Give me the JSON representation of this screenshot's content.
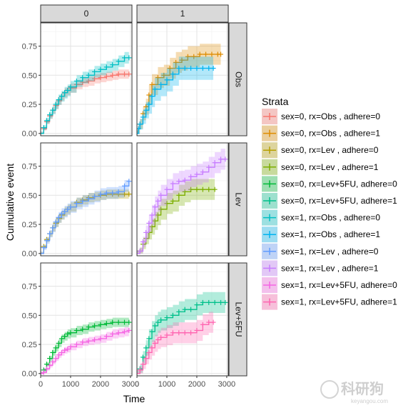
{
  "chart_data": {
    "type": "line",
    "subtype": "step cumulative-event curves with confidence bands (facetted)",
    "ylabel": "Cumulative event",
    "xlabel": "Time",
    "xlim": [
      0,
      3050
    ],
    "ylim": [
      -0.02,
      0.95
    ],
    "x_ticks": [
      0,
      1000,
      2000,
      3000
    ],
    "y_ticks": [
      0.0,
      0.25,
      0.5,
      0.75
    ],
    "x_tick_labels": [
      "0",
      "1000",
      "2000",
      "3000"
    ],
    "y_tick_labels": [
      "0.00",
      "0.25",
      "0.50",
      "0.75"
    ],
    "grid": true,
    "legend_title": "Strata",
    "legend_position": "right",
    "column_strips": [
      "0",
      "1"
    ],
    "row_strips": [
      "Obs",
      "Lev",
      "Lev+5FU"
    ],
    "legend": [
      {
        "label": "sex=0, rx=Obs    , adhere=0",
        "color": "#F8766D"
      },
      {
        "label": "sex=0, rx=Obs    , adhere=1",
        "color": "#DE8C00"
      },
      {
        "label": "sex=0, rx=Lev    , adhere=0",
        "color": "#B79F00"
      },
      {
        "label": "sex=0, rx=Lev    , adhere=1",
        "color": "#7CAE00"
      },
      {
        "label": "sex=0, rx=Lev+5FU, adhere=0",
        "color": "#00BA38"
      },
      {
        "label": "sex=0, rx=Lev+5FU, adhere=1",
        "color": "#00C08B"
      },
      {
        "label": "sex=1, rx=Obs    , adhere=0",
        "color": "#00BFC4"
      },
      {
        "label": "sex=1, rx=Obs    , adhere=1",
        "color": "#00B4F0"
      },
      {
        "label": "sex=1, rx=Lev    , adhere=0",
        "color": "#619CFF"
      },
      {
        "label": "sex=1, rx=Lev    , adhere=1",
        "color": "#C77CFF"
      },
      {
        "label": "sex=1, rx=Lev+5FU, adhere=0",
        "color": "#F564E3"
      },
      {
        "label": "sex=1, rx=Lev+5FU, adhere=1",
        "color": "#FF64B0"
      }
    ],
    "panels": [
      {
        "row": 0,
        "col": 0,
        "series": [
          {
            "legend_index": 0,
            "x": [
              0,
              100,
              200,
              300,
              400,
              500,
              600,
              700,
              800,
              900,
              1000,
              1200,
              1400,
              1600,
              1800,
              2000,
              2200,
              2400,
              2600,
              2800,
              2950
            ],
            "y": [
              0.0,
              0.04,
              0.1,
              0.15,
              0.2,
              0.24,
              0.28,
              0.32,
              0.35,
              0.37,
              0.39,
              0.42,
              0.44,
              0.45,
              0.47,
              0.48,
              0.49,
              0.5,
              0.51,
              0.51,
              0.51
            ],
            "band": 0.04
          },
          {
            "legend_index": 6,
            "x": [
              0,
              100,
              200,
              300,
              400,
              500,
              600,
              700,
              800,
              900,
              1000,
              1200,
              1400,
              1600,
              1800,
              2000,
              2200,
              2400,
              2600,
              2800,
              2950
            ],
            "y": [
              0.0,
              0.05,
              0.11,
              0.16,
              0.2,
              0.25,
              0.29,
              0.32,
              0.35,
              0.37,
              0.4,
              0.45,
              0.48,
              0.5,
              0.53,
              0.55,
              0.57,
              0.59,
              0.62,
              0.65,
              0.65
            ],
            "band": 0.05
          }
        ]
      },
      {
        "row": 0,
        "col": 1,
        "series": [
          {
            "legend_index": 1,
            "x": [
              0,
              50,
              100,
              200,
              300,
              400,
              500,
              700,
              900,
              1100,
              1300,
              1500,
              1700,
              1900,
              2100,
              2300,
              2500,
              2700,
              2800
            ],
            "y": [
              0.0,
              0.04,
              0.08,
              0.17,
              0.23,
              0.33,
              0.42,
              0.48,
              0.5,
              0.56,
              0.61,
              0.63,
              0.66,
              0.66,
              0.68,
              0.68,
              0.68,
              0.68,
              0.68
            ],
            "band": 0.09
          },
          {
            "legend_index": 7,
            "x": [
              0,
              50,
              100,
              200,
              300,
              400,
              500,
              600,
              800,
              1000,
              1200,
              1400,
              1600,
              1800,
              2000,
              2200,
              2400,
              2550
            ],
            "y": [
              0.0,
              0.04,
              0.08,
              0.14,
              0.2,
              0.25,
              0.32,
              0.38,
              0.42,
              0.46,
              0.51,
              0.56,
              0.56,
              0.56,
              0.56,
              0.56,
              0.56,
              0.56
            ],
            "band": 0.1
          }
        ]
      },
      {
        "row": 1,
        "col": 0,
        "series": [
          {
            "legend_index": 2,
            "x": [
              0,
              100,
              200,
              300,
              400,
              500,
              600,
              700,
              800,
              900,
              1000,
              1200,
              1400,
              1600,
              1800,
              2000,
              2200,
              2400,
              2600,
              2800,
              2950
            ],
            "y": [
              0.0,
              0.06,
              0.12,
              0.17,
              0.22,
              0.26,
              0.3,
              0.33,
              0.36,
              0.38,
              0.4,
              0.44,
              0.46,
              0.48,
              0.49,
              0.5,
              0.51,
              0.51,
              0.51,
              0.51,
              0.51
            ],
            "band": 0.04
          },
          {
            "legend_index": 8,
            "x": [
              0,
              100,
              200,
              300,
              400,
              500,
              600,
              700,
              800,
              900,
              1000,
              1200,
              1400,
              1600,
              1800,
              2000,
              2200,
              2400,
              2600,
              2800,
              2950
            ],
            "y": [
              0.0,
              0.05,
              0.11,
              0.17,
              0.22,
              0.27,
              0.31,
              0.34,
              0.36,
              0.38,
              0.4,
              0.43,
              0.45,
              0.47,
              0.49,
              0.51,
              0.52,
              0.52,
              0.53,
              0.58,
              0.62
            ],
            "band": 0.05
          }
        ]
      },
      {
        "row": 1,
        "col": 1,
        "series": [
          {
            "legend_index": 3,
            "x": [
              0,
              100,
              200,
              300,
              400,
              500,
              600,
              700,
              800,
              1000,
              1200,
              1400,
              1600,
              1800,
              2000,
              2200,
              2400,
              2600
            ],
            "y": [
              0.0,
              0.02,
              0.08,
              0.13,
              0.18,
              0.23,
              0.28,
              0.33,
              0.38,
              0.43,
              0.45,
              0.5,
              0.53,
              0.55,
              0.55,
              0.55,
              0.55,
              0.55
            ],
            "band": 0.09
          },
          {
            "legend_index": 9,
            "x": [
              0,
              100,
              200,
              300,
              400,
              500,
              600,
              700,
              800,
              1000,
              1200,
              1400,
              1600,
              1800,
              2000,
              2200,
              2400,
              2600,
              2800,
              2950
            ],
            "y": [
              0.0,
              0.02,
              0.1,
              0.18,
              0.26,
              0.33,
              0.4,
              0.45,
              0.5,
              0.55,
              0.6,
              0.62,
              0.63,
              0.66,
              0.68,
              0.7,
              0.74,
              0.78,
              0.81,
              0.81
            ],
            "band": 0.09
          }
        ]
      },
      {
        "row": 2,
        "col": 0,
        "series": [
          {
            "legend_index": 4,
            "x": [
              0,
              100,
              200,
              300,
              400,
              500,
              600,
              700,
              800,
              900,
              1000,
              1200,
              1400,
              1600,
              1800,
              2000,
              2200,
              2400,
              2600,
              2800,
              2950
            ],
            "y": [
              0.0,
              0.03,
              0.08,
              0.13,
              0.18,
              0.22,
              0.26,
              0.3,
              0.32,
              0.34,
              0.35,
              0.37,
              0.38,
              0.4,
              0.41,
              0.42,
              0.43,
              0.44,
              0.44,
              0.44,
              0.44
            ],
            "band": 0.04
          },
          {
            "legend_index": 10,
            "x": [
              0,
              100,
              200,
              300,
              400,
              500,
              600,
              700,
              800,
              900,
              1000,
              1200,
              1400,
              1600,
              1800,
              2000,
              2200,
              2400,
              2600,
              2800,
              2950
            ],
            "y": [
              0.0,
              0.01,
              0.04,
              0.07,
              0.1,
              0.13,
              0.16,
              0.18,
              0.2,
              0.21,
              0.23,
              0.25,
              0.27,
              0.28,
              0.29,
              0.3,
              0.32,
              0.34,
              0.35,
              0.36,
              0.37
            ],
            "band": 0.04
          }
        ]
      },
      {
        "row": 2,
        "col": 1,
        "series": [
          {
            "legend_index": 5,
            "x": [
              0,
              100,
              200,
              300,
              400,
              500,
              600,
              700,
              800,
              1000,
              1200,
              1400,
              1600,
              1800,
              2000,
              2200,
              2400,
              2600,
              2800,
              2950
            ],
            "y": [
              0.0,
              0.04,
              0.14,
              0.22,
              0.3,
              0.36,
              0.41,
              0.44,
              0.46,
              0.48,
              0.5,
              0.53,
              0.55,
              0.55,
              0.59,
              0.61,
              0.61,
              0.61,
              0.61,
              0.61
            ],
            "band": 0.09
          },
          {
            "legend_index": 11,
            "x": [
              0,
              100,
              200,
              300,
              400,
              500,
              600,
              700,
              800,
              1000,
              1200,
              1400,
              1600,
              1800,
              2000,
              2200,
              2400,
              2550
            ],
            "y": [
              0.0,
              0.03,
              0.08,
              0.13,
              0.18,
              0.22,
              0.26,
              0.29,
              0.31,
              0.33,
              0.35,
              0.35,
              0.35,
              0.35,
              0.37,
              0.42,
              0.44,
              0.44
            ],
            "band": 0.09
          }
        ]
      }
    ]
  },
  "watermark": {
    "text": "科研狗",
    "sub": "keyangou.com"
  }
}
